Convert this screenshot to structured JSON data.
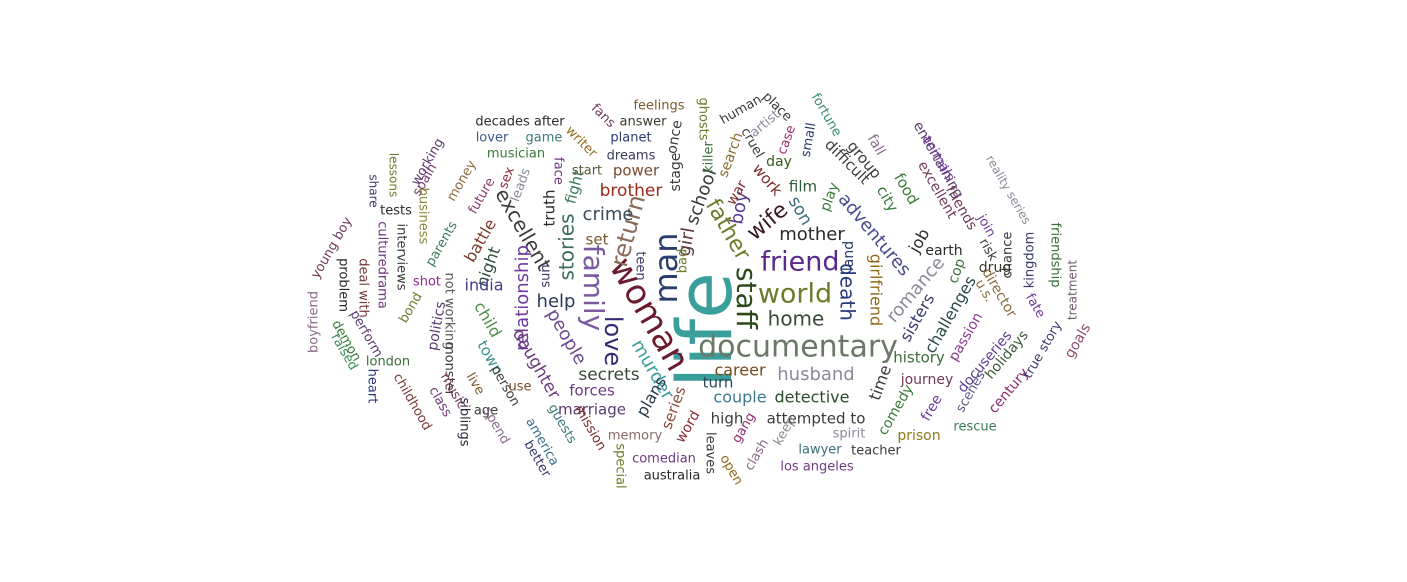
{
  "words": [
    {
      "text": "life",
      "color": "#3a9e9a"
    },
    {
      "text": "woman",
      "color": "#6b1a30"
    },
    {
      "text": "documentary",
      "color": "#6b7868"
    },
    {
      "text": "family",
      "color": "#7c5aa0"
    },
    {
      "text": "man",
      "color": "#2a3f6e"
    },
    {
      "text": "staff",
      "color": "#2a4a1a"
    },
    {
      "text": "world",
      "color": "#6e7a2a"
    },
    {
      "text": "friend",
      "color": "#5a2a8e"
    },
    {
      "text": "return",
      "color": "#8a6a5a"
    },
    {
      "text": "love",
      "color": "#3a2a6e"
    },
    {
      "text": "father",
      "color": "#6e7a2a"
    },
    {
      "text": "home",
      "color": "#3a4a3a"
    },
    {
      "text": "death",
      "color": "#2a3a7e"
    },
    {
      "text": "girl",
      "color": "#5a3a3a"
    },
    {
      "text": "stories",
      "color": "#3a6e5a"
    },
    {
      "text": "excellent",
      "color": "#3a3a3a"
    },
    {
      "text": "school",
      "color": "#3a3a3a"
    },
    {
      "text": "wife",
      "color": "#3a1a2a"
    },
    {
      "text": "mother",
      "color": "#2a2a2a"
    },
    {
      "text": "people",
      "color": "#6e4a8e"
    },
    {
      "text": "murder",
      "color": "#3a9e9a"
    },
    {
      "text": "relationship",
      "color": "#6e3a9e"
    },
    {
      "text": "help",
      "color": "#2a3a5a"
    },
    {
      "text": "crime",
      "color": "#3a4a5a"
    },
    {
      "text": "boy",
      "color": "#5a3a8e"
    },
    {
      "text": "husband",
      "color": "#8a8a9a"
    },
    {
      "text": "adventures",
      "color": "#4a4a8e"
    },
    {
      "text": "girlfriend",
      "color": "#8e6a1a"
    },
    {
      "text": "romance",
      "color": "#8a8a9a"
    },
    {
      "text": "brother",
      "color": "#9a2a1a"
    },
    {
      "text": "son",
      "color": "#3a6e7a"
    },
    {
      "text": "daughter",
      "color": "#6e3a7e"
    },
    {
      "text": "secrets",
      "color": "#3a4a3a"
    },
    {
      "text": "career",
      "color": "#7a4a1a"
    },
    {
      "text": "couple",
      "color": "#3a7a8e"
    },
    {
      "text": "detective",
      "color": "#2a4a2a"
    },
    {
      "text": "child",
      "color": "#4a8e4a"
    },
    {
      "text": "night",
      "color": "#2a4a3a"
    },
    {
      "text": "india",
      "color": "#4a3a8e"
    },
    {
      "text": "battle",
      "color": "#7a3a2a"
    },
    {
      "text": "plans",
      "color": "#2a3a4a"
    },
    {
      "text": "sisters",
      "color": "#3a3a6e"
    },
    {
      "text": "time",
      "color": "#3a3a3a"
    },
    {
      "text": "history",
      "color": "#3a6e3a"
    },
    {
      "text": "challenges",
      "color": "#2a4a4a"
    },
    {
      "text": "job",
      "color": "#2a2a2a"
    },
    {
      "text": "film",
      "color": "#2a5a3a"
    },
    {
      "text": "work",
      "color": "#7a2a2a"
    },
    {
      "text": "town",
      "color": "#3a8e8e"
    },
    {
      "text": "forces",
      "color": "#6e3a7e"
    },
    {
      "text": "marriage",
      "color": "#5a3a6e"
    },
    {
      "text": "high",
      "color": "#3a3a3a"
    },
    {
      "text": "attempted to",
      "color": "#3a3a3a"
    },
    {
      "text": "turn",
      "color": "#2a4a5a"
    },
    {
      "text": "series",
      "color": "#8a4a3a"
    },
    {
      "text": "power",
      "color": "#7a4a2a"
    },
    {
      "text": "set",
      "color": "#7a5a2a"
    },
    {
      "text": "fight",
      "color": "#3a7a5a"
    },
    {
      "text": "truth",
      "color": "#2a2a2a"
    },
    {
      "text": "city",
      "color": "#3a7a3a"
    },
    {
      "text": "food",
      "color": "#3a7a3a"
    },
    {
      "text": "group",
      "color": "#3a3a3a"
    },
    {
      "text": "difficult",
      "color": "#3a3a3a"
    },
    {
      "text": "earth",
      "color": "#2a2a2a"
    },
    {
      "text": "cop",
      "color": "#3a6e3a"
    },
    {
      "text": "drug",
      "color": "#3a3a2a"
    },
    {
      "text": "director",
      "color": "#8a6a3a"
    },
    {
      "text": "passion",
      "color": "#8a3a8e"
    },
    {
      "text": "docuseries",
      "color": "#5a3a8e"
    },
    {
      "text": "journey",
      "color": "#6e3a5a"
    },
    {
      "text": "comedy",
      "color": "#3a7a3a"
    },
    {
      "text": "prison",
      "color": "#8e7a1a"
    },
    {
      "text": "free",
      "color": "#6e3a9e"
    },
    {
      "text": "scenes",
      "color": "#5a5a8e"
    },
    {
      "text": "rescue",
      "color": "#3a7a5a"
    },
    {
      "text": "century",
      "color": "#8e2a6e"
    },
    {
      "text": "holidays",
      "color": "#3a5a3a"
    },
    {
      "text": "true story",
      "color": "#3a3a6e"
    },
    {
      "text": "goals",
      "color": "#8a4a6e"
    },
    {
      "text": "fate",
      "color": "#6e3a9e"
    },
    {
      "text": "kingdom",
      "color": "#3a3a6e"
    },
    {
      "text": "treatment",
      "color": "#6e5a6e"
    },
    {
      "text": "friendship",
      "color": "#3a6e3a"
    },
    {
      "text": "chance",
      "color": "#3a3a3a"
    },
    {
      "text": "risk",
      "color": "#3a3a3a"
    },
    {
      "text": "join",
      "color": "#6e3a9e"
    },
    {
      "text": "reality series",
      "color": "#8a8a9a"
    },
    {
      "text": "friends",
      "color": "#6e3a5a"
    },
    {
      "text": "excellent",
      "color": "#6e3a5a"
    },
    {
      "text": "entertaining",
      "color": "#5a3a6e"
    },
    {
      "text": "animals",
      "color": "#6e3a9e"
    },
    {
      "text": "fall",
      "color": "#8a6a8a"
    },
    {
      "text": "fortune",
      "color": "#3a8e7a"
    },
    {
      "text": "case",
      "color": "#9a2a6e"
    },
    {
      "text": "small",
      "color": "#2a3a6e"
    },
    {
      "text": "cruel",
      "color": "#3a3a3a"
    },
    {
      "text": "place",
      "color": "#3a3a3a"
    },
    {
      "text": "human",
      "color": "#3a3a3a"
    },
    {
      "text": "artist",
      "color": "#8a8a9a"
    },
    {
      "text": "day",
      "color": "#3a5a1a"
    },
    {
      "text": "play",
      "color": "#3a7a3a"
    },
    {
      "text": "land",
      "color": "#2a3a6e"
    },
    {
      "text": "war",
      "color": "#7a2a2a"
    },
    {
      "text": "search",
      "color": "#8a6a2a"
    },
    {
      "text": "killer",
      "color": "#3a6e3a"
    },
    {
      "text": "ghosts",
      "color": "#6e7a2a"
    },
    {
      "text": "stage",
      "color": "#3a3a3a"
    },
    {
      "text": "once",
      "color": "#3a3a3a"
    },
    {
      "text": "teen",
      "color": "#3a3a6e"
    },
    {
      "text": "bad",
      "color": "#6e7a2a"
    },
    {
      "text": "feelings",
      "color": "#7a5a2a"
    },
    {
      "text": "answer",
      "color": "#3a3a2a"
    },
    {
      "text": "fans",
      "color": "#6e3a5a"
    },
    {
      "text": "planet",
      "color": "#2a3a6e"
    },
    {
      "text": "dreams",
      "color": "#3a3a5a"
    },
    {
      "text": "start",
      "color": "#5a5a3a"
    },
    {
      "text": "writer",
      "color": "#8e6a1a"
    },
    {
      "text": "face",
      "color": "#6e3a7e"
    },
    {
      "text": "sex",
      "color": "#8e2a3a"
    },
    {
      "text": "leads",
      "color": "#8a8a9a"
    },
    {
      "text": "decades after",
      "color": "#2a2a2a"
    },
    {
      "text": "game",
      "color": "#3a7a7a"
    },
    {
      "text": "lover",
      "color": "#3a5a8e"
    },
    {
      "text": "musician",
      "color": "#3a7a3a"
    },
    {
      "text": "working",
      "color": "#5a3a6e"
    },
    {
      "text": "spain",
      "color": "#6e3a6e"
    },
    {
      "text": "money",
      "color": "#8a6a3a"
    },
    {
      "text": "future",
      "color": "#8a3a6e"
    },
    {
      "text": "lessons",
      "color": "#6e7a2a"
    },
    {
      "text": "share",
      "color": "#3a3a6e"
    },
    {
      "text": "tests",
      "color": "#2a2a2a"
    },
    {
      "text": "business",
      "color": "#8a8a3a"
    },
    {
      "text": "parents",
      "color": "#3a7a5a"
    },
    {
      "text": "interviews",
      "color": "#3a3a3a"
    },
    {
      "text": "culturedrama",
      "color": "#6e3a7e"
    },
    {
      "text": "young boy",
      "color": "#6e3a5a"
    },
    {
      "text": "problem",
      "color": "#2a2a2a"
    },
    {
      "text": "deal with",
      "color": "#7a3a3a"
    },
    {
      "text": "perform",
      "color": "#5a3a6e"
    },
    {
      "text": "demon",
      "color": "#3a7a3a"
    },
    {
      "text": "boyfriend",
      "color": "#8a6a8a"
    },
    {
      "text": "raised",
      "color": "#3a8e5a"
    },
    {
      "text": "london",
      "color": "#3a6e3a"
    },
    {
      "text": "heart",
      "color": "#2a3a7e"
    },
    {
      "text": "childhood",
      "color": "#7a3a3a"
    },
    {
      "text": "class",
      "color": "#6e3a6e"
    },
    {
      "text": "monster",
      "color": "#3a3a3a"
    },
    {
      "text": "music",
      "color": "#7a3a5a"
    },
    {
      "text": "siblings",
      "color": "#2a2a3a"
    },
    {
      "text": "age",
      "color": "#3a3a3a"
    },
    {
      "text": "bond",
      "color": "#6e7a2a"
    },
    {
      "text": "politics",
      "color": "#5a3a6e"
    },
    {
      "text": "shot",
      "color": "#8e2a8e"
    },
    {
      "text": "not working",
      "color": "#5a5a5a"
    },
    {
      "text": "live",
      "color": "#7a5a2a"
    },
    {
      "text": "person",
      "color": "#3a3a3a"
    },
    {
      "text": "use",
      "color": "#7a4a2a"
    },
    {
      "text": "spend",
      "color": "#8a6a8a"
    },
    {
      "text": "america",
      "color": "#3a6e8e"
    },
    {
      "text": "better",
      "color": "#3a3a6e"
    },
    {
      "text": "guests",
      "color": "#3a7a7a"
    },
    {
      "text": "mission",
      "color": "#7a2a2a"
    },
    {
      "text": "sun",
      "color": "#3a3a6e"
    },
    {
      "text": "memory",
      "color": "#8a6a6a"
    },
    {
      "text": "special",
      "color": "#6e7a2a"
    },
    {
      "text": "comedian",
      "color": "#6e3a7e"
    },
    {
      "text": "australia",
      "color": "#2a2a2a"
    },
    {
      "text": "word",
      "color": "#8e2a3a"
    },
    {
      "text": "leaves",
      "color": "#3a3a3a"
    },
    {
      "text": "open",
      "color": "#8e6a1a"
    },
    {
      "text": "gang",
      "color": "#8e2a6e"
    },
    {
      "text": "clash",
      "color": "#8a6a8a"
    },
    {
      "text": "keep",
      "color": "#8a8a8a"
    },
    {
      "text": "lawyer",
      "color": "#3a6e7a"
    },
    {
      "text": "spirit",
      "color": "#8a8a9a"
    },
    {
      "text": "teacher",
      "color": "#3a3a3a"
    },
    {
      "text": "los angeles",
      "color": "#6e3a7e"
    },
    {
      "text": "u.s.",
      "color": "#8a6a3a"
    }
  ]
}
